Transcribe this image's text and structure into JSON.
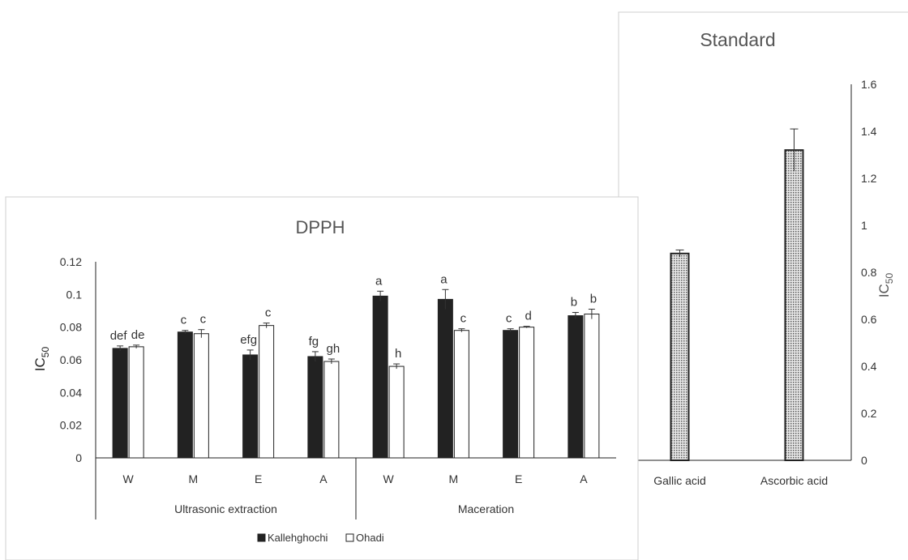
{
  "chart_data": [
    {
      "type": "bar",
      "title": "DPPH",
      "ylabel": "IC",
      "ylabel_sub": "50",
      "ylim": [
        0,
        0.12
      ],
      "yticks": [
        0,
        0.02,
        0.04,
        0.06,
        0.08,
        0.1,
        0.12
      ],
      "grid": false,
      "legend_position": "bottom",
      "groups": [
        {
          "name": "Ultrasonic extraction",
          "categories": [
            "W",
            "M",
            "E",
            "A"
          ]
        },
        {
          "name": "Maceration",
          "categories": [
            "W",
            "M",
            "E",
            "A"
          ]
        }
      ],
      "series": [
        {
          "name": "Kallehghochi",
          "color": "#222222",
          "values": [
            0.067,
            0.077,
            0.063,
            0.062,
            0.099,
            0.097,
            0.078,
            0.087
          ],
          "errors": [
            0.0015,
            0.001,
            0.003,
            0.003,
            0.003,
            0.006,
            0.001,
            0.002
          ],
          "letters": [
            "def",
            "c",
            "efg",
            "fg",
            "a",
            "a",
            "c",
            "b"
          ]
        },
        {
          "name": "Ohadi",
          "color": "#ffffff",
          "values": [
            0.068,
            0.076,
            0.081,
            0.059,
            0.056,
            0.078,
            0.08,
            0.088
          ],
          "errors": [
            0.001,
            0.0025,
            0.0015,
            0.0015,
            0.0015,
            0.001,
            0.0005,
            0.003
          ],
          "letters": [
            "de",
            "c",
            "c",
            "gh",
            "h",
            "c",
            "d",
            "b"
          ]
        }
      ]
    },
    {
      "type": "bar",
      "title": "Standard",
      "ylabel": "IC",
      "ylabel_sub": "50",
      "ylim": [
        0,
        1.6
      ],
      "yticks": [
        0,
        0.2,
        0.4,
        0.6,
        0.8,
        1,
        1.2,
        1.4,
        1.6
      ],
      "grid": false,
      "axis_position": "right",
      "categories": [
        "Gallic acid",
        "Ascorbic acid"
      ],
      "values": [
        0.88,
        1.32
      ],
      "errors": [
        0.015,
        0.09
      ],
      "pattern": "dotted"
    }
  ]
}
